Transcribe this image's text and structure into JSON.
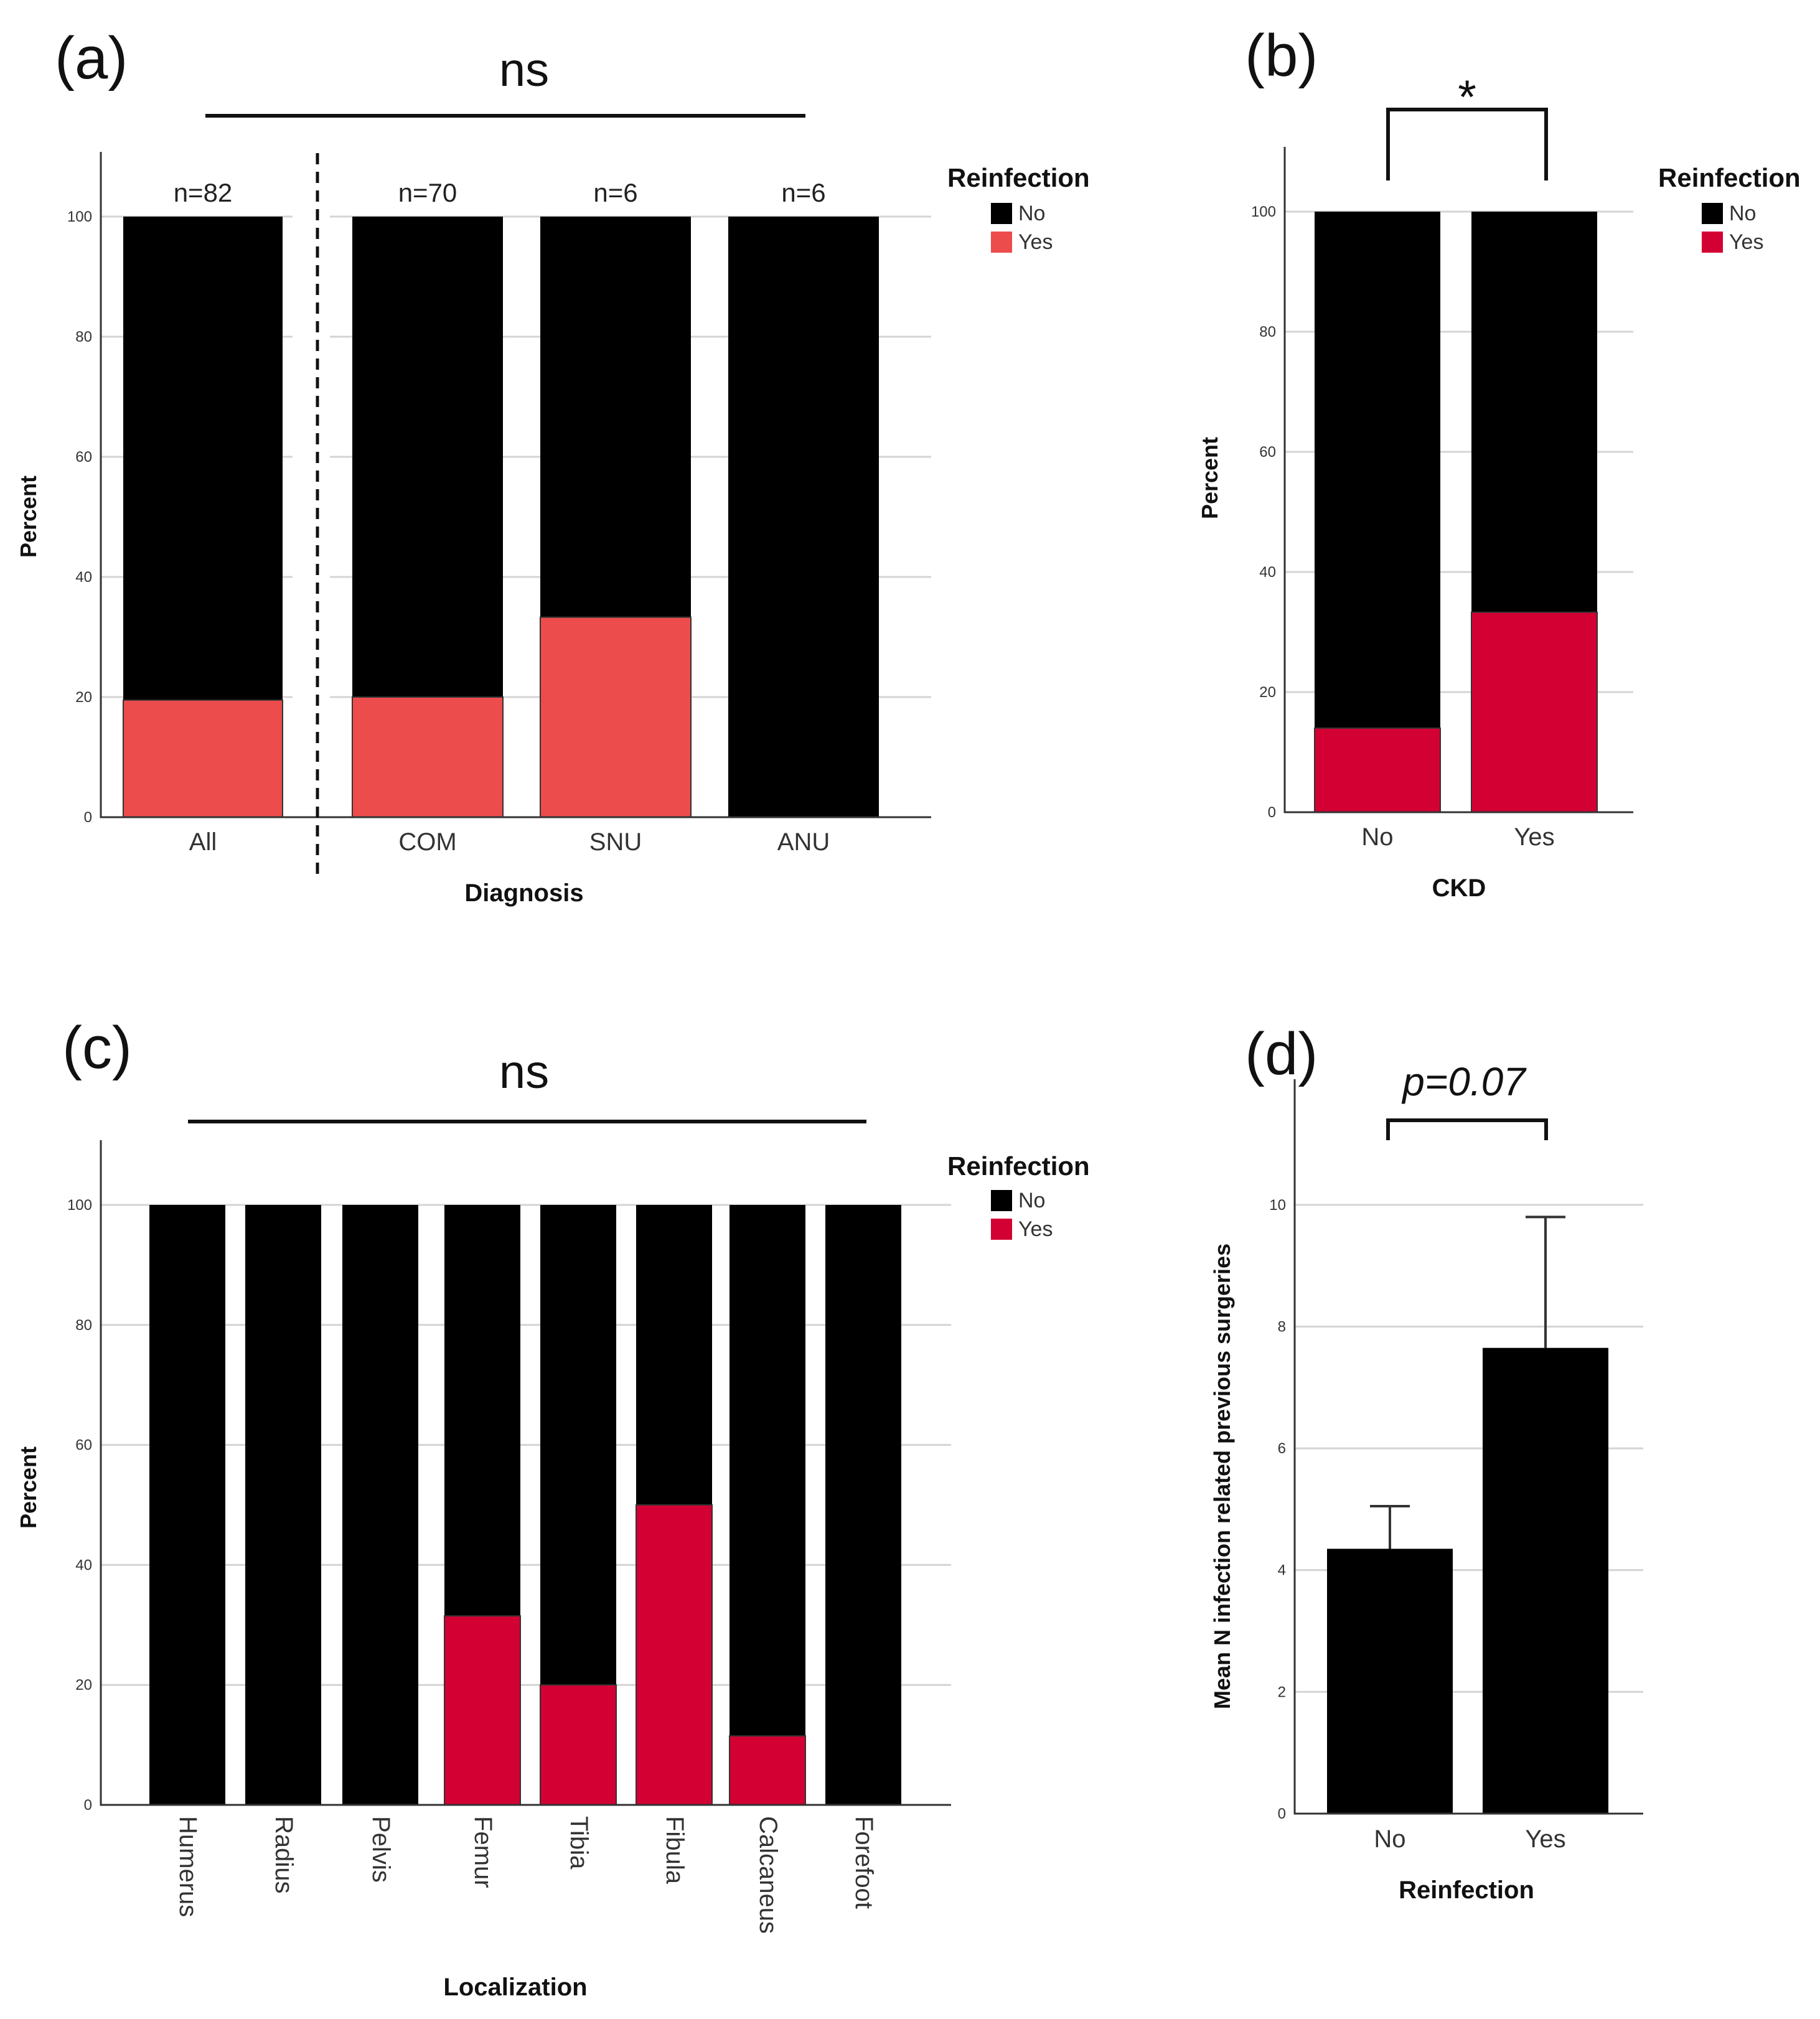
{
  "colors": {
    "no": "#000000",
    "yes_a": "#ec4c4b",
    "yes": "#d30033"
  },
  "chart_data": [
    {
      "panel": "(a)",
      "type": "bar",
      "stacked": true,
      "significance": "ns",
      "xlabel": "Diagnosis",
      "ylabel": "Percent",
      "ylim": [
        0,
        100
      ],
      "yticks": [
        "0",
        "20",
        "40",
        "60",
        "80",
        "100"
      ],
      "categories": [
        "All",
        "COM",
        "SNU",
        "ANU"
      ],
      "n_labels": [
        "n=82",
        "n=70",
        "n=6",
        "n=6"
      ],
      "legend_title": "Reinfection",
      "legend": [
        "No",
        "Yes"
      ],
      "legend_position": "right",
      "series": [
        {
          "name": "No",
          "values": [
            80.5,
            80.0,
            66.7,
            100
          ]
        },
        {
          "name": "Yes",
          "values": [
            19.5,
            20.0,
            33.3,
            0
          ]
        }
      ]
    },
    {
      "panel": "(b)",
      "type": "bar",
      "stacked": true,
      "significance": "*",
      "xlabel": "CKD",
      "ylabel": "Percent",
      "ylim": [
        0,
        100
      ],
      "yticks": [
        "0",
        "20",
        "40",
        "60",
        "80",
        "100"
      ],
      "categories": [
        "No",
        "Yes"
      ],
      "legend_title": "Reinfection",
      "legend": [
        "No",
        "Yes"
      ],
      "legend_position": "right",
      "series": [
        {
          "name": "No",
          "values": [
            86.0,
            66.7
          ]
        },
        {
          "name": "Yes",
          "values": [
            14.0,
            33.3
          ]
        }
      ]
    },
    {
      "panel": "(c)",
      "type": "bar",
      "stacked": true,
      "significance": "ns",
      "xlabel": "Localization",
      "ylabel": "Percent",
      "ylim": [
        0,
        100
      ],
      "yticks": [
        "0",
        "20",
        "40",
        "60",
        "80",
        "100"
      ],
      "categories": [
        "Humerus",
        "Radius",
        "Pelvis",
        "Femur",
        "Tibia",
        "Fibula",
        "Calcaneus",
        "Forefoot"
      ],
      "legend_title": "Reinfection",
      "legend": [
        "No",
        "Yes"
      ],
      "legend_position": "right",
      "series": [
        {
          "name": "No",
          "values": [
            100,
            100,
            100,
            68.5,
            80,
            50,
            88.5,
            100
          ]
        },
        {
          "name": "Yes",
          "values": [
            0,
            0,
            0,
            31.5,
            20,
            50,
            11.5,
            0
          ]
        }
      ]
    },
    {
      "panel": "(d)",
      "type": "bar",
      "significance": "p=0.07",
      "xlabel": "Reinfection",
      "ylabel": "Mean N infection related previous surgeries",
      "ylim": [
        0,
        11
      ],
      "yticks": [
        "0",
        "2",
        "4",
        "6",
        "8",
        "10"
      ],
      "categories": [
        "No",
        "Yes"
      ],
      "values": [
        4.35,
        7.65
      ],
      "error_upper": [
        5.05,
        9.8
      ]
    }
  ]
}
